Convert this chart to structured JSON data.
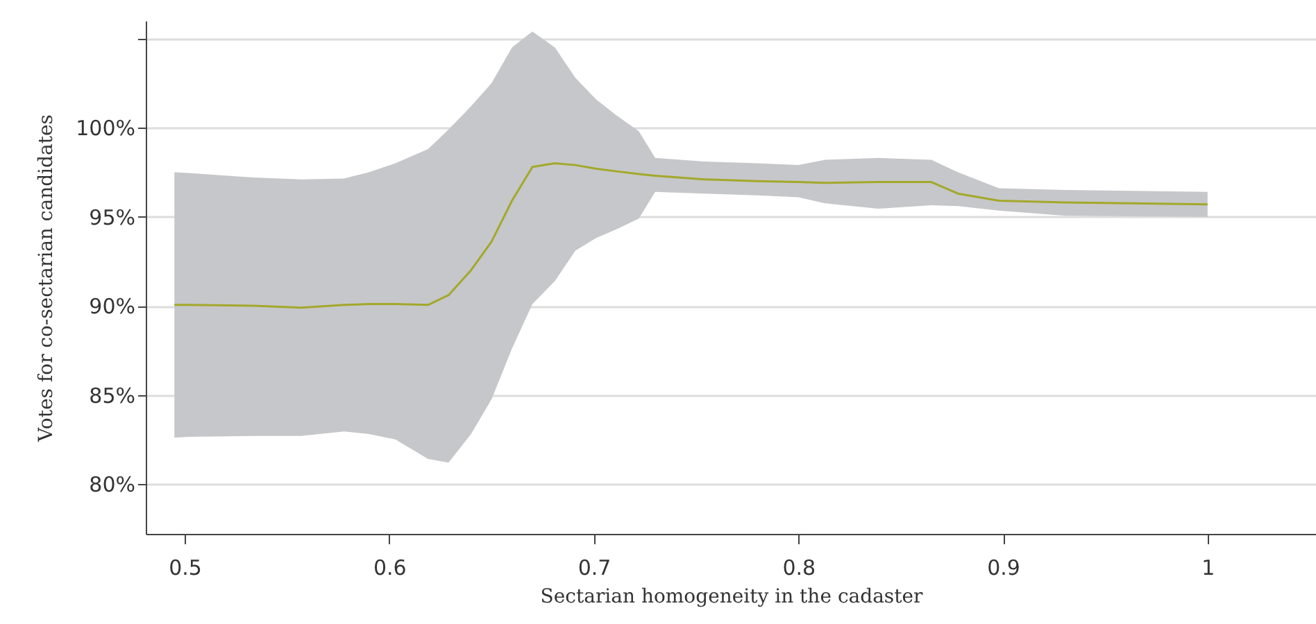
{
  "chart_data": {
    "type": "line",
    "xlabel": "Sectarian homogeneity in the cadaster",
    "ylabel": "Votes for co-sectarian candidates",
    "x": [
      0.495,
      0.503,
      0.534,
      0.557,
      0.578,
      0.59,
      0.603,
      0.619,
      0.629,
      0.64,
      0.65,
      0.66,
      0.67,
      0.681,
      0.691,
      0.701,
      0.711,
      0.722,
      0.73,
      0.754,
      0.78,
      0.8,
      0.813,
      0.839,
      0.865,
      0.878,
      0.898,
      0.931,
      1.0
    ],
    "series": [
      {
        "color": "#a3a82a",
        "values": [
          90.05,
          90.05,
          90.0,
          89.9,
          90.05,
          90.1,
          90.1,
          90.05,
          90.6,
          92.0,
          93.6,
          95.9,
          97.8,
          98.0,
          97.9,
          97.7,
          97.55,
          97.4,
          97.3,
          97.1,
          97.0,
          96.95,
          96.9,
          96.95,
          96.95,
          96.3,
          95.9,
          95.8,
          95.7
        ],
        "upper": [
          97.5,
          97.45,
          97.2,
          97.1,
          97.15,
          97.5,
          98.0,
          98.8,
          99.9,
          101.2,
          102.5,
          104.5,
          105.4,
          104.5,
          102.8,
          101.6,
          100.7,
          99.8,
          98.3,
          98.1,
          98.0,
          97.9,
          98.2,
          98.3,
          98.2,
          97.5,
          96.6,
          96.5,
          96.4
        ],
        "lower": [
          82.6,
          82.65,
          82.7,
          82.7,
          82.95,
          82.8,
          82.5,
          81.4,
          81.2,
          82.8,
          84.75,
          87.6,
          90.1,
          91.4,
          93.1,
          93.8,
          94.3,
          94.9,
          96.4,
          96.3,
          96.2,
          96.1,
          95.75,
          95.45,
          95.65,
          95.6,
          95.35,
          95.05,
          95.0
        ]
      }
    ],
    "xlim": [
      0.481,
      1.053
    ],
    "ylim": [
      77.2,
      106.0
    ],
    "xticks": [
      0.5,
      0.6,
      0.7,
      0.8,
      0.9,
      1
    ],
    "yticks": [
      {
        "value": 80,
        "label": "80%"
      },
      {
        "value": 85,
        "label": "85%"
      },
      {
        "value": 90,
        "label": "90%"
      },
      {
        "value": 95,
        "label": "95%"
      },
      {
        "value": 100,
        "label": "100%"
      },
      {
        "value": 105,
        "label": null
      }
    ],
    "grid": "y",
    "line_style": "solid",
    "marker": "none"
  }
}
